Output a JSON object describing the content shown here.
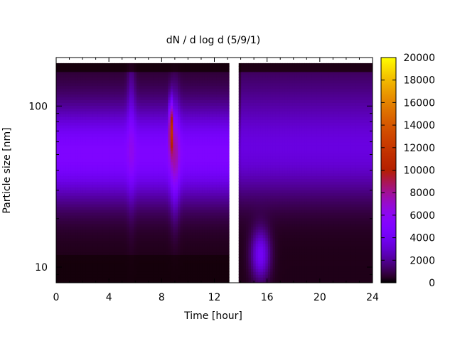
{
  "chart_data": {
    "type": "heatmap",
    "title": "dN / d log d (5/9/1)",
    "xlabel": "Time [hour]",
    "ylabel": "Particle size [nm]",
    "xlim": [
      0,
      24
    ],
    "ylim": [
      8,
      200
    ],
    "y_scale": "log",
    "x_ticks": [
      {
        "value": 0,
        "label": "0"
      },
      {
        "value": 4,
        "label": "4"
      },
      {
        "value": 8,
        "label": "8"
      },
      {
        "value": 12,
        "label": "12"
      },
      {
        "value": 16,
        "label": "16"
      },
      {
        "value": 20,
        "label": "20"
      },
      {
        "value": 24,
        "label": "24"
      }
    ],
    "y_ticks": [
      {
        "value": 10,
        "label": "10"
      },
      {
        "value": 100,
        "label": "100"
      }
    ],
    "colorbar": {
      "min": 0,
      "max": 20000,
      "ticks": [
        {
          "value": 0,
          "label": "0"
        },
        {
          "value": 2000,
          "label": "2000"
        },
        {
          "value": 4000,
          "label": "4000"
        },
        {
          "value": 6000,
          "label": "6000"
        },
        {
          "value": 8000,
          "label": "8000"
        },
        {
          "value": 10000,
          "label": "10000"
        },
        {
          "value": 12000,
          "label": "12000"
        },
        {
          "value": 14000,
          "label": "14000"
        },
        {
          "value": 16000,
          "label": "16000"
        },
        {
          "value": 18000,
          "label": "18000"
        },
        {
          "value": 20000,
          "label": "20000"
        }
      ],
      "colormap": "gnuplot-default (black-purple-red-yellow)"
    },
    "data_gap_hours": [
      13.2,
      13.8
    ],
    "features": [
      {
        "description": "broad mode",
        "size_nm": 50,
        "level": 4500
      },
      {
        "description": "peak burst",
        "time_hour": 8.7,
        "size_nm": 75,
        "level": 12500
      },
      {
        "description": "small particle mode",
        "time_hour": 15.5,
        "size_nm": 12,
        "level": 3800
      }
    ]
  }
}
